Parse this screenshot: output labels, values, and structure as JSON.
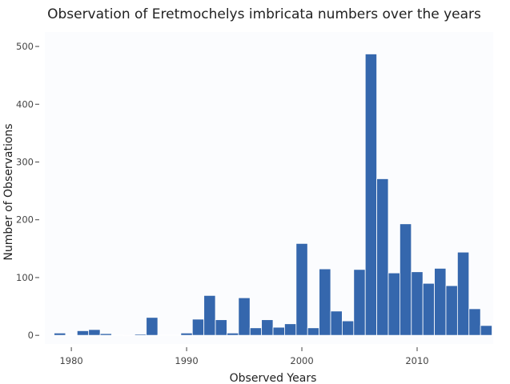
{
  "chart_data": {
    "type": "bar",
    "title": "Observation of Eretmochelys imbricata numbers over the years",
    "xlabel": "Observed Years",
    "ylabel": "Number of Observations",
    "x": [
      1979,
      1980,
      1981,
      1982,
      1983,
      1984,
      1985,
      1986,
      1987,
      1988,
      1989,
      1990,
      1991,
      1992,
      1993,
      1994,
      1995,
      1996,
      1997,
      1998,
      1999,
      2000,
      2001,
      2002,
      2003,
      2004,
      2005,
      2006,
      2007,
      2008,
      2009,
      2010,
      2011,
      2012,
      2013,
      2014,
      2015,
      2016
    ],
    "values": [
      4,
      1,
      8,
      10,
      3,
      1,
      0,
      2,
      31,
      1,
      1,
      4,
      28,
      69,
      27,
      4,
      65,
      13,
      27,
      14,
      20,
      159,
      13,
      115,
      42,
      25,
      114,
      487,
      271,
      108,
      193,
      110,
      90,
      116,
      86,
      144,
      46,
      17
    ],
    "xlim": [
      1977.7,
      2016.6
    ],
    "ylim": [
      -15,
      525
    ],
    "xticks": [
      1980,
      1990,
      2000,
      2010
    ],
    "yticks": [
      0,
      100,
      200,
      300,
      400,
      500
    ],
    "grid": false,
    "legend": "none",
    "bar_color": "#3567ad",
    "plot_bg": "#fbfcfe"
  }
}
